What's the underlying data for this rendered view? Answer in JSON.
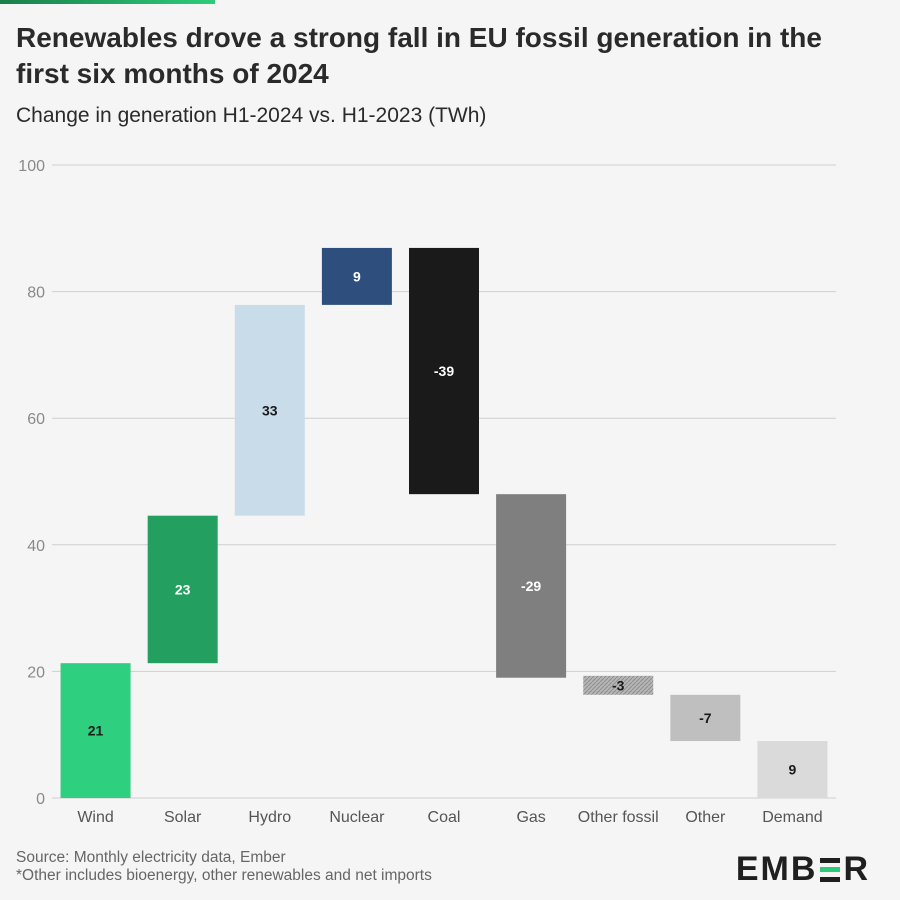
{
  "title": "Renewables drove a strong fall in EU fossil generation in the first six months of 2024",
  "subtitle": "Change in generation H1-2024 vs. H1-2023 (TWh)",
  "footer": {
    "source": "Source: Monthly electricity data, Ember",
    "note": "*Other includes bioenergy, other renewables and net imports"
  },
  "logo": {
    "left": "EMB",
    "right": "R"
  },
  "chart_data": {
    "type": "bar",
    "subtype": "waterfall",
    "categories": [
      "Wind",
      "Solar",
      "Hydro",
      "Nuclear",
      "Coal",
      "Gas",
      "Other fossil",
      "Other",
      "Demand"
    ],
    "values": [
      21,
      23,
      33,
      9,
      -39,
      -29,
      -3,
      -7,
      9
    ],
    "value_labels": [
      "21",
      "23",
      "33",
      "9",
      "-39",
      "-29",
      "-3",
      "-7",
      "9"
    ],
    "bar_ranges": [
      [
        0,
        21.3
      ],
      [
        21.3,
        44.6
      ],
      [
        44.6,
        77.9
      ],
      [
        77.9,
        86.9
      ],
      [
        48,
        86.9
      ],
      [
        19,
        48
      ],
      [
        16.3,
        19.3
      ],
      [
        9,
        16.3
      ],
      [
        0,
        9
      ]
    ],
    "colors": [
      "#2ecf7f",
      "#239f60",
      "#c9dcea",
      "#2e4f7e",
      "#1a1a1a",
      "#7f7f7f",
      "#a8a8a8",
      "#bfbfbf",
      "#dadada"
    ],
    "label_colors": [
      "#1a1a1a",
      "#ffffff",
      "#1a1a1a",
      "#ffffff",
      "#ffffff",
      "#ffffff",
      "#1a1a1a",
      "#1a1a1a",
      "#1a1a1a"
    ],
    "hatched": [
      false,
      false,
      false,
      false,
      false,
      false,
      true,
      false,
      false
    ],
    "ylim": [
      0,
      100
    ],
    "yticks": [
      0,
      20,
      40,
      60,
      80,
      100
    ],
    "grid": true
  }
}
